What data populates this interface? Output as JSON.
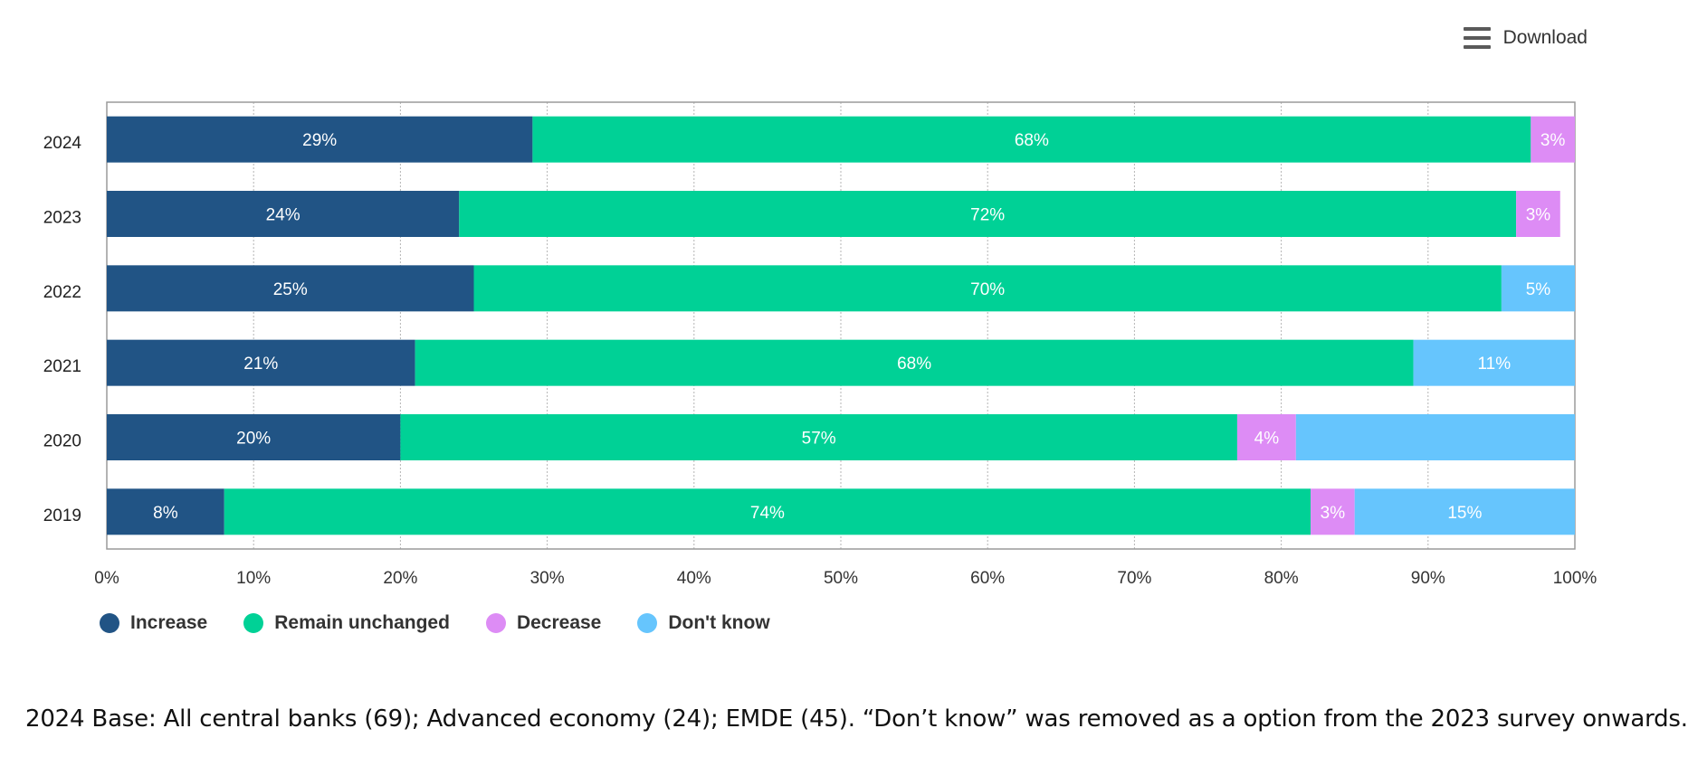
{
  "toolbar": {
    "download_label": "Download",
    "download_icon": "hamburger-icon"
  },
  "chart_data": {
    "type": "bar",
    "orientation": "horizontal",
    "stacked": true,
    "categories": [
      "2024",
      "2023",
      "2022",
      "2021",
      "2020",
      "2019"
    ],
    "series": [
      {
        "name": "Increase",
        "color": "#215485",
        "values": [
          29,
          24,
          25,
          21,
          20,
          8
        ],
        "labels": [
          "29%",
          "24%",
          "25%",
          "21%",
          "20%",
          "8%"
        ]
      },
      {
        "name": "Remain unchanged",
        "color": "#00d196",
        "values": [
          68,
          72,
          70,
          68,
          57,
          74
        ],
        "labels": [
          "68%",
          "72%",
          "70%",
          "68%",
          "57%",
          "74%"
        ]
      },
      {
        "name": "Decrease",
        "color": "#dd8cf5",
        "values": [
          3,
          3,
          0,
          0,
          4,
          3
        ],
        "labels": [
          "3%",
          "3%",
          "",
          "",
          "4%",
          "3%"
        ]
      },
      {
        "name": "Don't know",
        "color": "#66c5fd",
        "values": [
          0,
          0,
          5,
          11,
          19,
          15
        ],
        "labels": [
          "",
          "",
          "5%",
          "11%",
          "",
          "15%"
        ]
      }
    ],
    "xlim": [
      0,
      100
    ],
    "xticks": [
      "0%",
      "10%",
      "20%",
      "30%",
      "40%",
      "50%",
      "60%",
      "70%",
      "80%",
      "90%",
      "100%"
    ],
    "grid": true,
    "legend_position": "bottom-left"
  },
  "footnote": "2024 Base: All central banks (69); Advanced economy (24); EMDE (45). “Don’t know” was removed as a option from the 2023 survey onwards."
}
